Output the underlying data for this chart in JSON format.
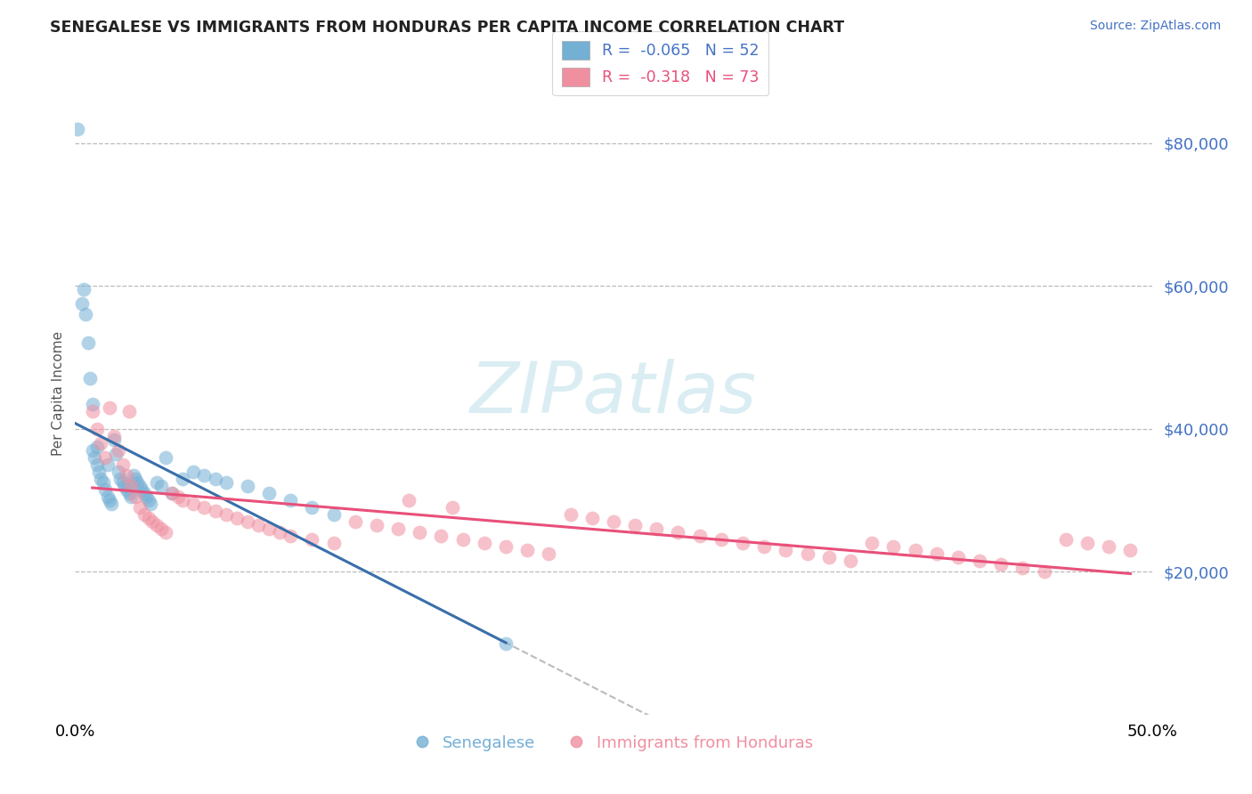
{
  "title": "SENEGALESE VS IMMIGRANTS FROM HONDURAS PER CAPITA INCOME CORRELATION CHART",
  "source": "Source: ZipAtlas.com",
  "ylabel": "Per Capita Income",
  "xlim": [
    0,
    0.5
  ],
  "ylim": [
    0,
    90000
  ],
  "ytick_vals": [
    20000,
    40000,
    60000,
    80000
  ],
  "ytick_labels": [
    "$20,000",
    "$40,000",
    "$60,000",
    "$80,000"
  ],
  "xtick_vals": [
    0.0,
    0.5
  ],
  "xtick_labels": [
    "0.0%",
    "50.0%"
  ],
  "senegalese_color": "#74afd4",
  "honduras_color": "#f08fa0",
  "trendline_senegalese_color": "#3a6faa",
  "trendline_honduras_color": "#e8507a",
  "trendline_gray_color": "#bbbbbb",
  "watermark_text": "ZIPatlas",
  "watermark_color": "#add8e6",
  "legend_r1": "R =  -0.065   N = 52",
  "legend_r2": "R =  -0.318   N = 73",
  "legend_color1": "#4472c4",
  "legend_color2": "#e8507a",
  "bottom_label1": "Senegalese",
  "bottom_label2": "Immigrants from Honduras",
  "senegalese_x": [
    0.001,
    0.003,
    0.004,
    0.005,
    0.006,
    0.007,
    0.008,
    0.008,
    0.009,
    0.01,
    0.01,
    0.011,
    0.012,
    0.013,
    0.014,
    0.015,
    0.015,
    0.016,
    0.017,
    0.018,
    0.019,
    0.02,
    0.021,
    0.022,
    0.023,
    0.024,
    0.025,
    0.026,
    0.027,
    0.028,
    0.029,
    0.03,
    0.031,
    0.032,
    0.033,
    0.034,
    0.035,
    0.038,
    0.04,
    0.042,
    0.045,
    0.05,
    0.055,
    0.06,
    0.065,
    0.07,
    0.08,
    0.09,
    0.1,
    0.11,
    0.12,
    0.2
  ],
  "senegalese_y": [
    82000,
    57500,
    59500,
    56000,
    52000,
    47000,
    37000,
    43500,
    36000,
    35000,
    37500,
    34000,
    33000,
    32500,
    31500,
    30500,
    35000,
    30000,
    29500,
    38500,
    36500,
    34000,
    33000,
    32500,
    32000,
    31500,
    31000,
    30500,
    33500,
    33000,
    32500,
    32000,
    31500,
    31000,
    30500,
    30000,
    29500,
    32500,
    32000,
    36000,
    31000,
    33000,
    34000,
    33500,
    33000,
    32500,
    32000,
    31000,
    30000,
    29000,
    28000,
    10000
  ],
  "honduras_x": [
    0.008,
    0.01,
    0.012,
    0.014,
    0.016,
    0.018,
    0.02,
    0.022,
    0.024,
    0.025,
    0.026,
    0.028,
    0.03,
    0.032,
    0.034,
    0.036,
    0.038,
    0.04,
    0.042,
    0.045,
    0.048,
    0.05,
    0.055,
    0.06,
    0.065,
    0.07,
    0.075,
    0.08,
    0.085,
    0.09,
    0.095,
    0.1,
    0.11,
    0.12,
    0.13,
    0.14,
    0.15,
    0.155,
    0.16,
    0.17,
    0.175,
    0.18,
    0.19,
    0.2,
    0.21,
    0.22,
    0.23,
    0.24,
    0.25,
    0.26,
    0.27,
    0.28,
    0.29,
    0.3,
    0.31,
    0.32,
    0.33,
    0.34,
    0.35,
    0.36,
    0.37,
    0.38,
    0.39,
    0.4,
    0.41,
    0.42,
    0.43,
    0.44,
    0.45,
    0.46,
    0.47,
    0.48,
    0.49
  ],
  "honduras_y": [
    42500,
    40000,
    38000,
    36000,
    43000,
    39000,
    37000,
    35000,
    33500,
    42500,
    32000,
    30500,
    29000,
    28000,
    27500,
    27000,
    26500,
    26000,
    25500,
    31000,
    30500,
    30000,
    29500,
    29000,
    28500,
    28000,
    27500,
    27000,
    26500,
    26000,
    25500,
    25000,
    24500,
    24000,
    27000,
    26500,
    26000,
    30000,
    25500,
    25000,
    29000,
    24500,
    24000,
    23500,
    23000,
    22500,
    28000,
    27500,
    27000,
    26500,
    26000,
    25500,
    25000,
    24500,
    24000,
    23500,
    23000,
    22500,
    22000,
    21500,
    24000,
    23500,
    23000,
    22500,
    22000,
    21500,
    21000,
    20500,
    20000,
    24500,
    24000,
    23500,
    23000
  ]
}
